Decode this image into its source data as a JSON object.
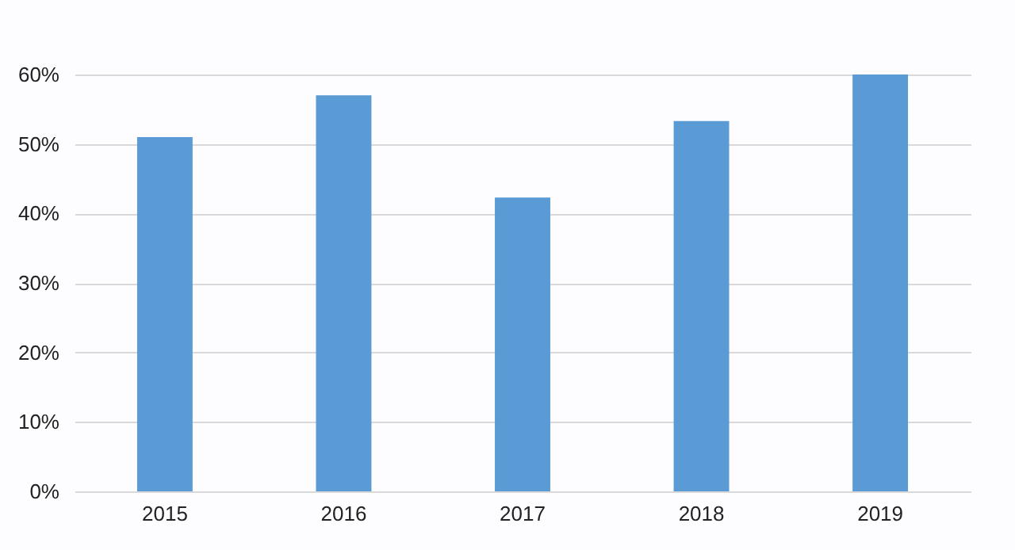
{
  "chart_data": {
    "type": "bar",
    "categories": [
      "2015",
      "2016",
      "2017",
      "2018",
      "2019"
    ],
    "values": [
      51,
      57,
      42.3,
      53.3,
      60
    ],
    "color": "#5b9bd5",
    "ylim": [
      0,
      60
    ],
    "yticks": [
      {
        "value": 0,
        "label": "0%"
      },
      {
        "value": 10,
        "label": "10%"
      },
      {
        "value": 20,
        "label": "20%"
      },
      {
        "value": 30,
        "label": "30%"
      },
      {
        "value": 40,
        "label": "40%"
      },
      {
        "value": 50,
        "label": "50%"
      },
      {
        "value": 60,
        "label": "60%"
      }
    ],
    "grid": "y"
  }
}
